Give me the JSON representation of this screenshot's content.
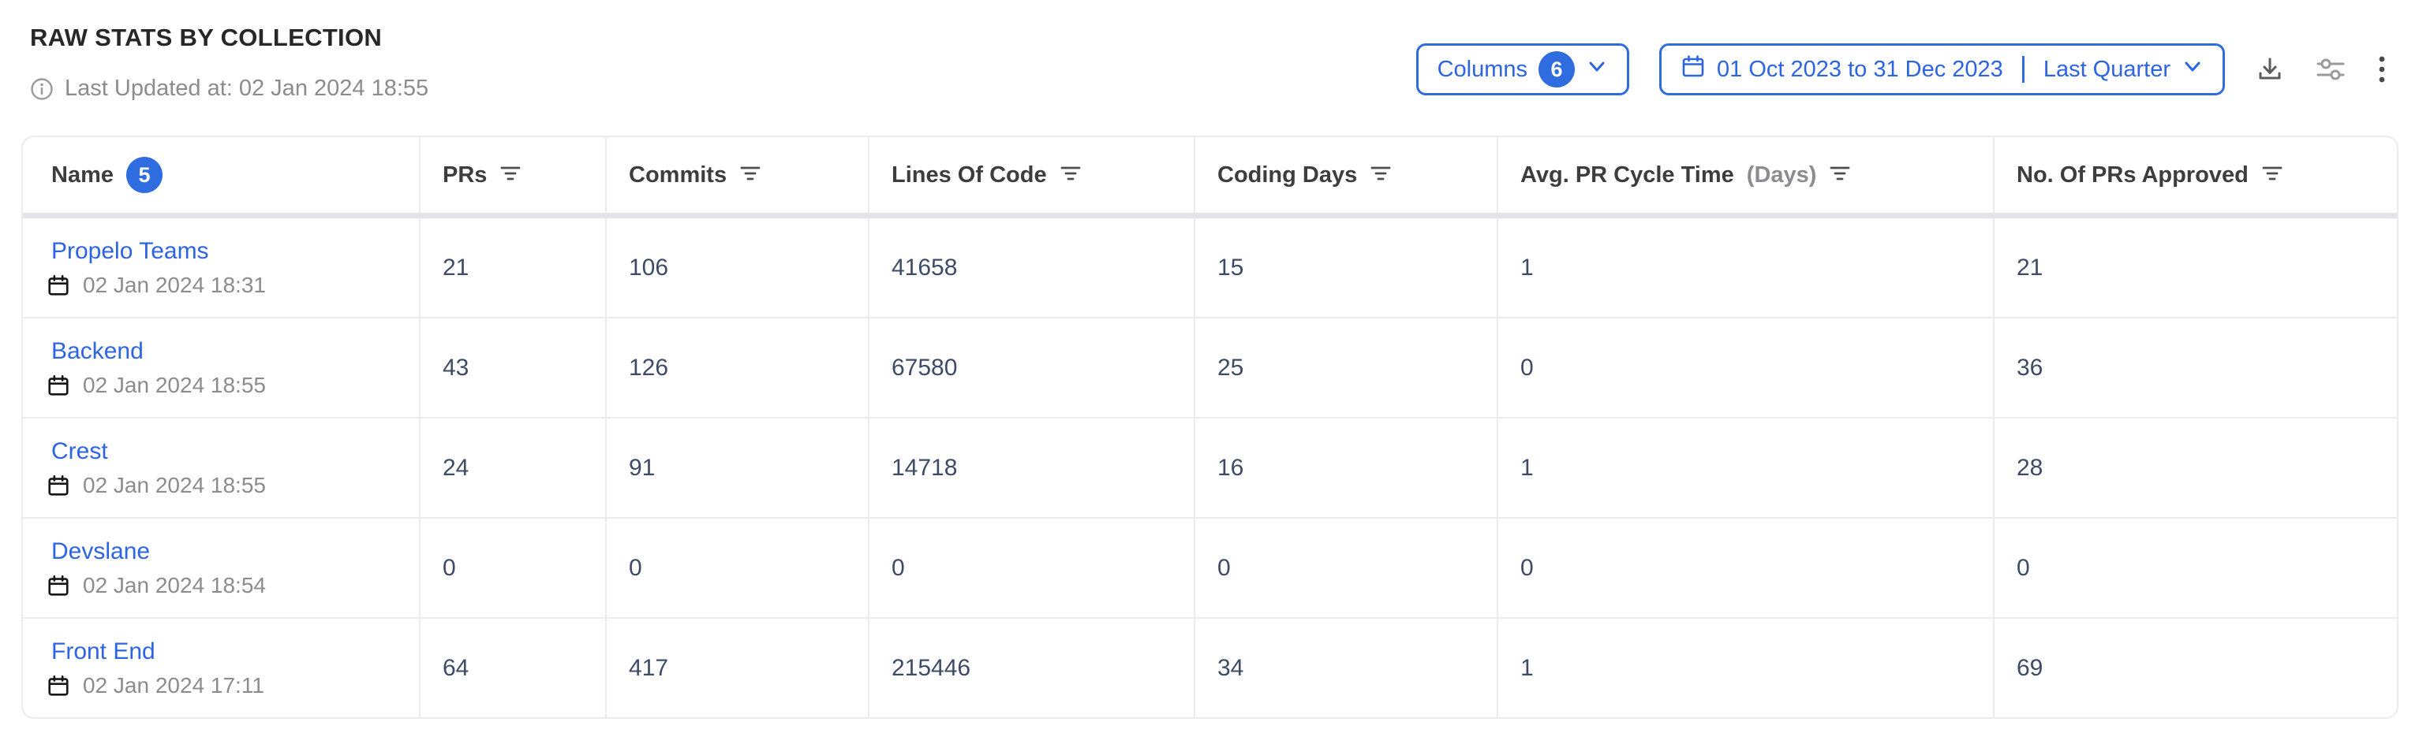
{
  "page": {
    "title": "RAW STATS BY COLLECTION",
    "last_updated": "Last Updated at: 02 Jan 2024 18:55"
  },
  "toolbar": {
    "columns_button": {
      "label": "Columns",
      "count": "6"
    },
    "date_button": {
      "range": "01 Oct 2023 to 31 Dec 2023",
      "preset": "Last Quarter"
    },
    "icons": {
      "info": "info-icon",
      "calendar": "calendar-icon",
      "chevron": "chevron-down-icon",
      "download": "download-icon",
      "settings": "sliders-icon",
      "more": "kebab-menu-icon",
      "filter": "filter-lines-icon"
    }
  },
  "table": {
    "columns": [
      {
        "key": "name",
        "label": "Name",
        "badge": "5"
      },
      {
        "key": "prs",
        "label": "PRs",
        "filter": true
      },
      {
        "key": "commits",
        "label": "Commits",
        "filter": true
      },
      {
        "key": "loc",
        "label": "Lines Of Code",
        "filter": true
      },
      {
        "key": "coding_days",
        "label": "Coding Days",
        "filter": true
      },
      {
        "key": "avg_pr_cycle",
        "label": "Avg. PR Cycle Time",
        "label_suffix": "(Days)",
        "filter": true
      },
      {
        "key": "prs_approved",
        "label": "No. Of PRs Approved",
        "filter": true
      }
    ],
    "rows": [
      {
        "name": "Propelo Teams",
        "updated": "02 Jan 2024 18:31",
        "prs": "21",
        "commits": "106",
        "loc": "41658",
        "coding_days": "15",
        "avg_pr_cycle": "1",
        "prs_approved": "21"
      },
      {
        "name": "Backend",
        "updated": "02 Jan 2024 18:55",
        "prs": "43",
        "commits": "126",
        "loc": "67580",
        "coding_days": "25",
        "avg_pr_cycle": "0",
        "prs_approved": "36"
      },
      {
        "name": "Crest",
        "updated": "02 Jan 2024 18:55",
        "prs": "24",
        "commits": "91",
        "loc": "14718",
        "coding_days": "16",
        "avg_pr_cycle": "1",
        "prs_approved": "28"
      },
      {
        "name": "Devslane",
        "updated": "02 Jan 2024 18:54",
        "prs": "0",
        "commits": "0",
        "loc": "0",
        "coding_days": "0",
        "avg_pr_cycle": "0",
        "prs_approved": "0"
      },
      {
        "name": "Front End",
        "updated": "02 Jan 2024 17:11",
        "prs": "64",
        "commits": "417",
        "loc": "215446",
        "coding_days": "34",
        "avg_pr_cycle": "1",
        "prs_approved": "69"
      }
    ]
  },
  "colors": {
    "accent": "#2e6ce0",
    "link": "#2c64e3",
    "value_text": "#3e4b66",
    "muted_text": "#8c8c90",
    "border": "#ececf0"
  }
}
